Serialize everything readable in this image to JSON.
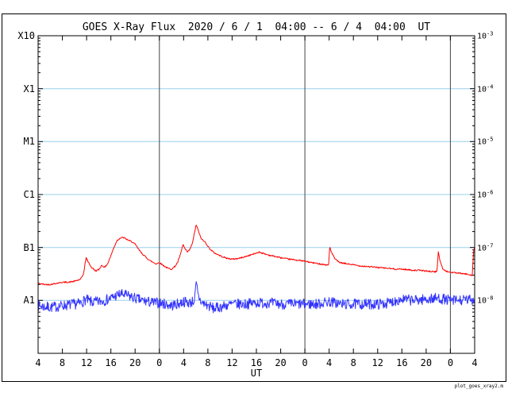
{
  "watermark": "plot_goes_xray2.m",
  "chart_data": {
    "type": "line",
    "title": "GOES X-Ray Flux  2020 / 6 / 1  04:00 -- 6 / 4  04:00  UT",
    "xlabel": "UT",
    "x_start_hour": 4,
    "x_end_hour": 76,
    "x_tick_interval_hours": 4,
    "x_tick_labels": [
      "4",
      "8",
      "12",
      "16",
      "20",
      "0",
      "4",
      "8",
      "12",
      "16",
      "20",
      "0",
      "4",
      "8",
      "12",
      "16",
      "20",
      "0",
      "4"
    ],
    "day_boundaries_hours": [
      24,
      48,
      72
    ],
    "ylog_top_exp": -3,
    "ylog_bottom_exp": -9,
    "y_left_labels": [
      {
        "label": "X10",
        "exp": -3
      },
      {
        "label": "X1",
        "exp": -4
      },
      {
        "label": "M1",
        "exp": -5
      },
      {
        "label": "C1",
        "exp": -6
      },
      {
        "label": "B1",
        "exp": -7
      },
      {
        "label": "A1",
        "exp": -8
      }
    ],
    "y_right_exponents": [
      -3,
      -4,
      -5,
      -6,
      -7,
      -8
    ],
    "gridline_exponents": [
      -4,
      -5,
      -6,
      -7,
      -8
    ],
    "colors": {
      "grid": "#99cfee",
      "frame": "#000000",
      "day_line": "#444444",
      "red": "#ff0000",
      "blue": "#3333ff"
    },
    "series": [
      {
        "name": "blue-flux-curve",
        "color": "#3333ff",
        "noise_log": 0.1,
        "seed": 7,
        "points": [
          [
            4,
            8e-09
          ],
          [
            5,
            7.6e-09
          ],
          [
            6,
            7.4e-09
          ],
          [
            7,
            7.6e-09
          ],
          [
            8,
            8e-09
          ],
          [
            9,
            8.2e-09
          ],
          [
            10,
            8.5e-09
          ],
          [
            11,
            8.8e-09
          ],
          [
            11.9,
            1.05e-08
          ],
          [
            12.5,
            9.5e-09
          ],
          [
            13,
            9.2e-09
          ],
          [
            14,
            9.5e-09
          ],
          [
            15,
            1e-08
          ],
          [
            16,
            1.1e-08
          ],
          [
            17,
            1.25e-08
          ],
          [
            17.5,
            1.3e-08
          ],
          [
            18,
            1.3e-08
          ],
          [
            19,
            1.2e-08
          ],
          [
            20,
            1.1e-08
          ],
          [
            21,
            1e-08
          ],
          [
            22,
            9.5e-09
          ],
          [
            23,
            9e-09
          ],
          [
            24,
            9e-09
          ],
          [
            25,
            8.5e-09
          ],
          [
            26,
            8e-09
          ],
          [
            27,
            8.5e-09
          ],
          [
            28,
            9.5e-09
          ],
          [
            29,
            9e-09
          ],
          [
            29.8,
            1e-08
          ],
          [
            30.1,
            2.1e-08
          ],
          [
            30.4,
            1.2e-08
          ],
          [
            31,
            9e-09
          ],
          [
            32,
            8e-09
          ],
          [
            33,
            7e-09
          ],
          [
            34,
            7.5e-09
          ],
          [
            35,
            8e-09
          ],
          [
            36,
            8.5e-09
          ],
          [
            38,
            8.5e-09
          ],
          [
            40,
            9e-09
          ],
          [
            42,
            9e-09
          ],
          [
            44,
            8.5e-09
          ],
          [
            46,
            8.5e-09
          ],
          [
            48,
            8.5e-09
          ],
          [
            50,
            8.5e-09
          ],
          [
            52,
            9.5e-09
          ],
          [
            53,
            9e-09
          ],
          [
            54,
            8.5e-09
          ],
          [
            56,
            8.5e-09
          ],
          [
            58,
            8.5e-09
          ],
          [
            60,
            8.5e-09
          ],
          [
            62,
            9e-09
          ],
          [
            63,
            1e-08
          ],
          [
            64,
            1.05e-08
          ],
          [
            66,
            1e-08
          ],
          [
            68,
            1.05e-08
          ],
          [
            70,
            1.1e-08
          ],
          [
            72,
            1e-08
          ],
          [
            74,
            1e-08
          ],
          [
            76,
            1.05e-08
          ]
        ]
      },
      {
        "name": "red-flux-curve",
        "color": "#ff0000",
        "noise_log": 0.013,
        "seed": 42,
        "points": [
          [
            4,
            2.1e-08
          ],
          [
            5,
            2e-08
          ],
          [
            6,
            2e-08
          ],
          [
            7,
            2.1e-08
          ],
          [
            8,
            2.2e-08
          ],
          [
            9,
            2.2e-08
          ],
          [
            10,
            2.3e-08
          ],
          [
            11,
            2.5e-08
          ],
          [
            11.5,
            3.2e-08
          ],
          [
            11.9,
            6.5e-08
          ],
          [
            12.2,
            5.5e-08
          ],
          [
            12.8,
            4.2e-08
          ],
          [
            13.5,
            3.6e-08
          ],
          [
            14,
            3.8e-08
          ],
          [
            14.5,
            4.6e-08
          ],
          [
            15,
            4.2e-08
          ],
          [
            15.5,
            5e-08
          ],
          [
            16,
            7e-08
          ],
          [
            16.5,
            1e-07
          ],
          [
            17,
            1.35e-07
          ],
          [
            17.5,
            1.5e-07
          ],
          [
            18,
            1.55e-07
          ],
          [
            18.5,
            1.45e-07
          ],
          [
            19,
            1.35e-07
          ],
          [
            19.5,
            1.28e-07
          ],
          [
            20,
            1.15e-07
          ],
          [
            20.5,
            9.5e-08
          ],
          [
            21,
            8e-08
          ],
          [
            21.5,
            7e-08
          ],
          [
            22,
            6.2e-08
          ],
          [
            22.5,
            5.6e-08
          ],
          [
            23,
            5.2e-08
          ],
          [
            23.5,
            4.9e-08
          ],
          [
            24,
            5.2e-08
          ],
          [
            24.5,
            4.7e-08
          ],
          [
            25,
            4.3e-08
          ],
          [
            25.5,
            4e-08
          ],
          [
            26,
            3.9e-08
          ],
          [
            26.5,
            4.3e-08
          ],
          [
            27,
            5.2e-08
          ],
          [
            27.5,
            7.5e-08
          ],
          [
            27.9,
            1.15e-07
          ],
          [
            28.2,
            9.5e-08
          ],
          [
            28.6,
            8.2e-08
          ],
          [
            29,
            9e-08
          ],
          [
            29.5,
            1.25e-07
          ],
          [
            29.9,
            2.2e-07
          ],
          [
            30.1,
            2.7e-07
          ],
          [
            30.4,
            2.1e-07
          ],
          [
            30.8,
            1.55e-07
          ],
          [
            31.2,
            1.35e-07
          ],
          [
            31.6,
            1.25e-07
          ],
          [
            32,
            1.05e-07
          ],
          [
            32.5,
            9e-08
          ],
          [
            33,
            8e-08
          ],
          [
            34,
            7e-08
          ],
          [
            35,
            6.3e-08
          ],
          [
            36,
            6e-08
          ],
          [
            37,
            6.2e-08
          ],
          [
            38,
            6.6e-08
          ],
          [
            39,
            7.2e-08
          ],
          [
            40,
            7.8e-08
          ],
          [
            40.5,
            8.2e-08
          ],
          [
            41,
            7.8e-08
          ],
          [
            42,
            7.2e-08
          ],
          [
            43,
            6.8e-08
          ],
          [
            44,
            6.4e-08
          ],
          [
            45,
            6.1e-08
          ],
          [
            46,
            5.9e-08
          ],
          [
            47,
            5.7e-08
          ],
          [
            48,
            5.5e-08
          ],
          [
            49,
            5.2e-08
          ],
          [
            50,
            5e-08
          ],
          [
            51,
            4.8e-08
          ],
          [
            51.9,
            4.6e-08
          ],
          [
            52.1,
            1.05e-07
          ],
          [
            52.4,
            8e-08
          ],
          [
            53,
            6e-08
          ],
          [
            53.6,
            5.3e-08
          ],
          [
            54,
            5.1e-08
          ],
          [
            55,
            4.9e-08
          ],
          [
            56,
            4.7e-08
          ],
          [
            57,
            4.5e-08
          ],
          [
            58,
            4.4e-08
          ],
          [
            59,
            4.3e-08
          ],
          [
            60,
            4.2e-08
          ],
          [
            61,
            4.1e-08
          ],
          [
            62,
            4e-08
          ],
          [
            63,
            3.9e-08
          ],
          [
            64,
            3.9e-08
          ],
          [
            65,
            3.8e-08
          ],
          [
            66,
            3.7e-08
          ],
          [
            67,
            3.7e-08
          ],
          [
            68,
            3.6e-08
          ],
          [
            69,
            3.5e-08
          ],
          [
            69.8,
            3.5e-08
          ],
          [
            70,
            8.5e-08
          ],
          [
            70.3,
            5.5e-08
          ],
          [
            70.8,
            3.8e-08
          ],
          [
            71.5,
            3.5e-08
          ],
          [
            72,
            3.4e-08
          ],
          [
            73,
            3.3e-08
          ],
          [
            74,
            3.2e-08
          ],
          [
            75,
            3.1e-08
          ],
          [
            75.6,
            3e-08
          ],
          [
            75.8,
            8e-08
          ],
          [
            76,
            1.05e-07
          ]
        ]
      }
    ]
  }
}
